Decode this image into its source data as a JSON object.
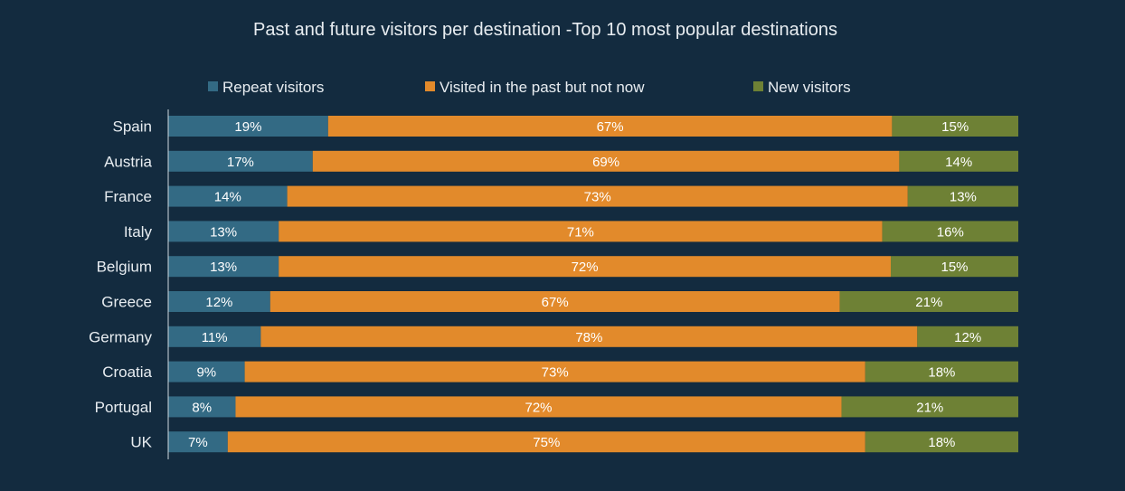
{
  "chart_data": {
    "type": "bar",
    "orientation": "horizontal",
    "stacked": true,
    "title": "Past and future visitors per destination -Top 10 most popular destinations",
    "categories": [
      "Spain",
      "Austria",
      "France",
      "Italy",
      "Belgium",
      "Greece",
      "Germany",
      "Croatia",
      "Portugal",
      "UK"
    ],
    "series": [
      {
        "name": "Repeat visitors",
        "color": "#336a84",
        "values": [
          19,
          17,
          14,
          13,
          13,
          12,
          11,
          9,
          8,
          7
        ]
      },
      {
        "name": "Visited in the past but not now",
        "color": "#e28a2b",
        "values": [
          67,
          69,
          73,
          71,
          72,
          67,
          78,
          73,
          72,
          75
        ]
      },
      {
        "name": "New visitors",
        "color": "#6e8135",
        "values": [
          15,
          14,
          13,
          16,
          15,
          21,
          12,
          18,
          21,
          18
        ]
      }
    ],
    "value_suffix": "%",
    "legend_position": "top",
    "grid": false
  }
}
